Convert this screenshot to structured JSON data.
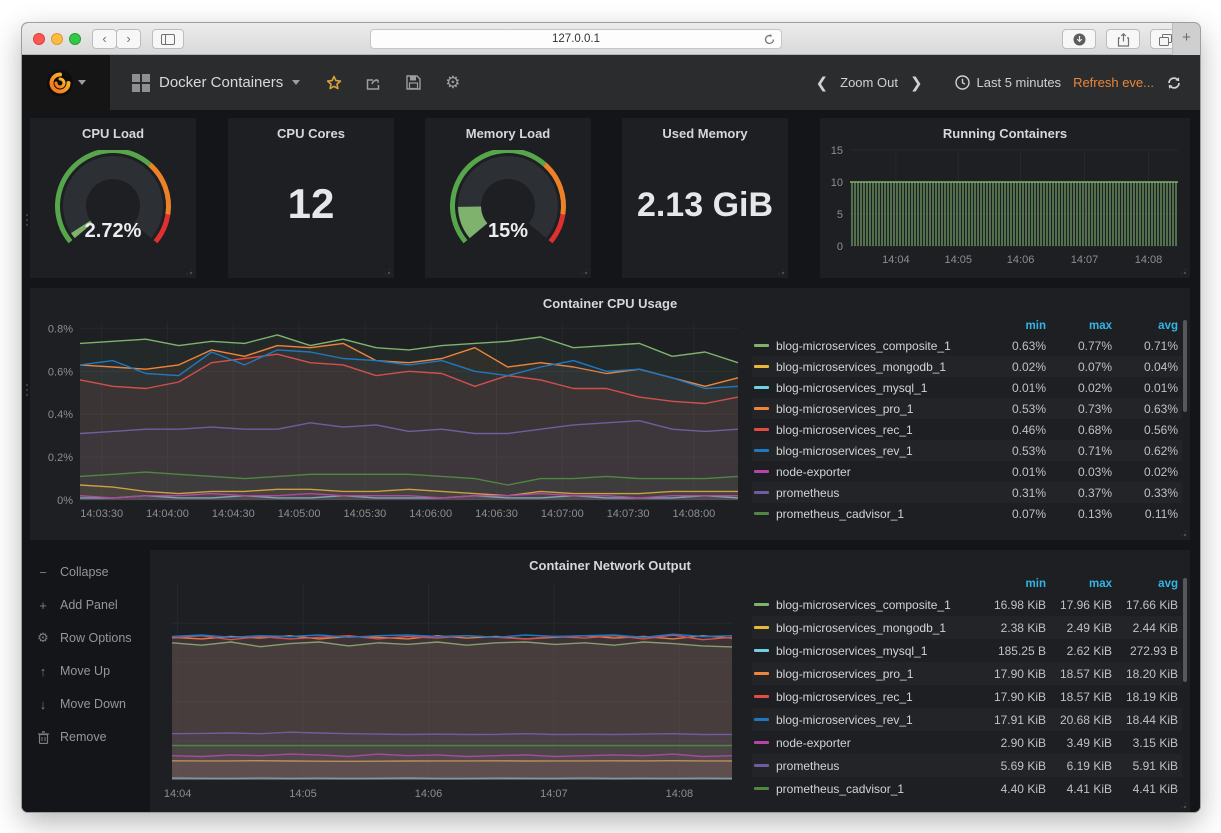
{
  "browser": {
    "url": "127.0.0.1"
  },
  "navbar": {
    "dashboard_title": "Docker Containers",
    "zoom_out": "Zoom Out",
    "time_range": "Last 5 minutes",
    "refresh_interval": "Refresh eve...",
    "accent_orange": "#e8873a"
  },
  "stats": {
    "cpu_load": {
      "title": "CPU Load",
      "value": "2.72%",
      "percent": 2.72
    },
    "cpu_cores": {
      "title": "CPU Cores",
      "value": "12"
    },
    "memory_load": {
      "title": "Memory Load",
      "value": "15%",
      "percent": 15
    },
    "used_memory": {
      "title": "Used Memory",
      "value": "2.13 GiB"
    }
  },
  "gauge": {
    "thresholds": [
      "#57a64b",
      "#ed8128",
      "#e02f2f"
    ],
    "value_color": "#7eb26d"
  },
  "legend_header": [
    "min",
    "max",
    "avg"
  ],
  "row_menu": {
    "items": [
      {
        "icon": "minus",
        "label": "Collapse"
      },
      {
        "icon": "plus",
        "label": "Add Panel"
      },
      {
        "icon": "gear",
        "label": "Row Options"
      },
      {
        "icon": "arrow-up",
        "label": "Move Up"
      },
      {
        "icon": "arrow-down",
        "label": "Move Down"
      },
      {
        "icon": "trash",
        "label": "Remove"
      }
    ]
  },
  "chart_data": [
    {
      "id": "running-containers",
      "type": "bar",
      "title": "Running Containers",
      "value": 10,
      "color": "#7eb26d",
      "ylim": [
        0,
        15
      ],
      "grid": true,
      "legend_position": "none",
      "yticks": [
        {
          "v": 0,
          "label": "0"
        },
        {
          "v": 5,
          "label": "5"
        },
        {
          "v": 10,
          "label": "10"
        },
        {
          "v": 15,
          "label": "15"
        }
      ],
      "xticks": [
        {
          "f": 0.14,
          "label": "14:04"
        },
        {
          "f": 0.33,
          "label": "14:05"
        },
        {
          "f": 0.52,
          "label": "14:06"
        },
        {
          "f": 0.715,
          "label": "14:07"
        },
        {
          "f": 0.91,
          "label": "14:08"
        }
      ]
    },
    {
      "id": "cpu-usage",
      "type": "line",
      "title": "Container CPU Usage",
      "ylim": [
        0,
        0.83
      ],
      "grid": true,
      "legend_position": "right-table",
      "yticks": [
        {
          "v": 0,
          "label": "0%"
        },
        {
          "v": 0.2,
          "label": "0.2%"
        },
        {
          "v": 0.4,
          "label": "0.4%"
        },
        {
          "v": 0.6,
          "label": "0.6%"
        },
        {
          "v": 0.8,
          "label": "0.8%"
        }
      ],
      "xticks": [
        {
          "f": 0.033,
          "label": "14:03:30"
        },
        {
          "f": 0.133,
          "label": "14:04:00"
        },
        {
          "f": 0.233,
          "label": "14:04:30"
        },
        {
          "f": 0.333,
          "label": "14:05:00"
        },
        {
          "f": 0.433,
          "label": "14:05:30"
        },
        {
          "f": 0.533,
          "label": "14:06:00"
        },
        {
          "f": 0.633,
          "label": "14:06:30"
        },
        {
          "f": 0.733,
          "label": "14:07:00"
        },
        {
          "f": 0.833,
          "label": "14:07:30"
        },
        {
          "f": 0.933,
          "label": "14:08:00"
        }
      ],
      "series": [
        {
          "name": "blog-microservices_composite_1",
          "color": "#7EB26D",
          "min": "0.63%",
          "max": "0.77%",
          "avg": "0.71%",
          "values": [
            0.73,
            0.74,
            0.75,
            0.72,
            0.74,
            0.73,
            0.77,
            0.72,
            0.75,
            0.71,
            0.7,
            0.72,
            0.73,
            0.74,
            0.76,
            0.71,
            0.72,
            0.73,
            0.67,
            0.69,
            0.64
          ]
        },
        {
          "name": "blog-microservices_mongodb_1",
          "color": "#EAB839",
          "min": "0.02%",
          "max": "0.07%",
          "avg": "0.04%",
          "values": [
            0.07,
            0.06,
            0.04,
            0.03,
            0.04,
            0.04,
            0.05,
            0.05,
            0.04,
            0.04,
            0.05,
            0.04,
            0.03,
            0.02,
            0.04,
            0.03,
            0.03,
            0.03,
            0.04,
            0.04,
            0.04
          ]
        },
        {
          "name": "blog-microservices_mysql_1",
          "color": "#6ED0E0",
          "min": "0.01%",
          "max": "0.02%",
          "avg": "0.01%",
          "values": [
            0.01,
            0.01,
            0.02,
            0.01,
            0.01,
            0.02,
            0.01,
            0.01,
            0.02,
            0.01,
            0.01,
            0.01,
            0.02,
            0.01,
            0.01,
            0.02,
            0.01,
            0.01,
            0.01,
            0.02,
            0.01
          ]
        },
        {
          "name": "blog-microservices_pro_1",
          "color": "#EF843C",
          "min": "0.53%",
          "max": "0.73%",
          "avg": "0.63%",
          "values": [
            0.63,
            0.62,
            0.61,
            0.63,
            0.7,
            0.67,
            0.72,
            0.71,
            0.73,
            0.65,
            0.64,
            0.66,
            0.71,
            0.62,
            0.64,
            0.62,
            0.59,
            0.61,
            0.57,
            0.53,
            0.57
          ]
        },
        {
          "name": "blog-microservices_rec_1",
          "color": "#E24D42",
          "min": "0.46%",
          "max": "0.68%",
          "avg": "0.56%",
          "values": [
            0.56,
            0.53,
            0.52,
            0.55,
            0.64,
            0.66,
            0.68,
            0.64,
            0.63,
            0.58,
            0.6,
            0.59,
            0.53,
            0.58,
            0.56,
            0.52,
            0.52,
            0.48,
            0.46,
            0.45,
            0.48
          ]
        },
        {
          "name": "blog-microservices_rev_1",
          "color": "#1F78C1",
          "min": "0.53%",
          "max": "0.71%",
          "avg": "0.62%",
          "values": [
            0.63,
            0.65,
            0.59,
            0.58,
            0.69,
            0.63,
            0.7,
            0.69,
            0.66,
            0.65,
            0.63,
            0.65,
            0.6,
            0.58,
            0.62,
            0.65,
            0.6,
            0.61,
            0.57,
            0.52,
            0.53
          ]
        },
        {
          "name": "node-exporter",
          "color": "#BA43A9",
          "min": "0.01%",
          "max": "0.03%",
          "avg": "0.02%",
          "values": [
            0.02,
            0.01,
            0.02,
            0.02,
            0.03,
            0.02,
            0.02,
            0.03,
            0.02,
            0.02,
            0.02,
            0.01,
            0.02,
            0.02,
            0.03,
            0.02,
            0.02,
            0.01,
            0.02,
            0.02,
            0.02
          ]
        },
        {
          "name": "prometheus",
          "color": "#705DA0",
          "min": "0.31%",
          "max": "0.37%",
          "avg": "0.33%",
          "values": [
            0.31,
            0.32,
            0.33,
            0.33,
            0.34,
            0.33,
            0.33,
            0.36,
            0.34,
            0.35,
            0.32,
            0.33,
            0.31,
            0.31,
            0.33,
            0.35,
            0.36,
            0.37,
            0.33,
            0.32,
            0.33
          ]
        },
        {
          "name": "prometheus_cadvisor_1",
          "color": "#508642",
          "min": "0.07%",
          "max": "0.13%",
          "avg": "0.11%",
          "values": [
            0.11,
            0.12,
            0.13,
            0.12,
            0.11,
            0.1,
            0.11,
            0.12,
            0.12,
            0.12,
            0.12,
            0.11,
            0.1,
            0.07,
            0.1,
            0.1,
            0.11,
            0.1,
            0.1,
            0.1,
            0.11
          ]
        }
      ]
    },
    {
      "id": "network-output",
      "type": "line",
      "title": "Container Network Output",
      "ylim": [
        0,
        25
      ],
      "unit": "KiB",
      "grid": true,
      "legend_position": "right-table",
      "yticks": [
        {
          "v": 5
        },
        {
          "v": 10
        },
        {
          "v": 15
        },
        {
          "v": 20
        }
      ],
      "xticks": [
        {
          "f": 0.01,
          "label": "14:04"
        },
        {
          "f": 0.234,
          "label": "14:05"
        },
        {
          "f": 0.458,
          "label": "14:06"
        },
        {
          "f": 0.682,
          "label": "14:07"
        },
        {
          "f": 0.906,
          "label": "14:08"
        }
      ],
      "series": [
        {
          "name": "blog-microservices_composite_1",
          "color": "#7EB26D",
          "min": "16.98 KiB",
          "max": "17.96 KiB",
          "avg": "17.66 KiB",
          "values": [
            17.5,
            17.2,
            17.6,
            17.0,
            17.4,
            17.6,
            17.1,
            17.5,
            17.3,
            17.6,
            17.2,
            17.5,
            17.6,
            17.3,
            17.5,
            17.2,
            17.6,
            17.4,
            17.1,
            16.98
          ]
        },
        {
          "name": "blog-microservices_mongodb_1",
          "color": "#EAB839",
          "min": "2.38 KiB",
          "max": "2.49 KiB",
          "avg": "2.44 KiB",
          "values": [
            2.45,
            2.44,
            2.43,
            2.46,
            2.42,
            2.4,
            2.38,
            2.4,
            2.42,
            2.44,
            2.43,
            2.45,
            2.42,
            2.44,
            2.43,
            2.45,
            2.44,
            2.46,
            2.43,
            2.44
          ]
        },
        {
          "name": "blog-microservices_mysql_1",
          "color": "#6ED0E0",
          "min": "185.25 B",
          "max": "2.62 KiB",
          "avg": "272.93 B",
          "values": [
            0.25,
            0.22,
            0.2,
            0.24,
            0.21,
            0.23,
            0.2,
            0.22,
            0.25,
            0.21,
            0.2,
            0.23,
            0.22,
            0.2,
            0.24,
            0.21,
            0.22,
            0.2,
            0.23,
            0.21
          ]
        },
        {
          "name": "blog-microservices_pro_1",
          "color": "#EF843C",
          "min": "17.90 KiB",
          "max": "18.57 KiB",
          "avg": "18.20 KiB",
          "values": [
            18.2,
            18.0,
            18.3,
            18.1,
            18.4,
            18.0,
            18.3,
            18.2,
            18.0,
            18.4,
            18.1,
            18.3,
            18.0,
            18.2,
            18.4,
            18.1,
            18.3,
            18.0,
            18.4,
            18.1
          ]
        },
        {
          "name": "blog-microservices_rec_1",
          "color": "#E24D42",
          "min": "17.90 KiB",
          "max": "18.57 KiB",
          "avg": "18.19 KiB",
          "values": [
            18.1,
            18.4,
            17.9,
            18.3,
            18.0,
            18.2,
            18.4,
            18.0,
            18.3,
            18.1,
            18.4,
            18.2,
            18.0,
            18.3,
            18.1,
            18.4,
            18.0,
            18.5,
            17.9,
            18.2
          ]
        },
        {
          "name": "blog-microservices_rev_1",
          "color": "#1F78C1",
          "min": "17.91 KiB",
          "max": "20.68 KiB",
          "avg": "18.44 KiB",
          "values": [
            18.3,
            18.5,
            18.2,
            18.4,
            18.3,
            18.5,
            18.2,
            18.4,
            18.5,
            18.3,
            18.4,
            18.2,
            18.5,
            18.3,
            18.4,
            18.5,
            18.2,
            18.6,
            18.3,
            18.4
          ]
        },
        {
          "name": "node-exporter",
          "color": "#BA43A9",
          "min": "2.90 KiB",
          "max": "3.49 KiB",
          "avg": "3.15 KiB",
          "values": [
            3.1,
            3.0,
            3.2,
            3.1,
            3.3,
            3.2,
            3.0,
            3.3,
            3.1,
            3.2,
            3.0,
            3.1,
            3.2,
            3.0,
            3.1,
            3.2,
            3.1,
            3.3,
            3.0,
            3.1
          ]
        },
        {
          "name": "prometheus",
          "color": "#705DA0",
          "min": "5.69 KiB",
          "max": "6.19 KiB",
          "avg": "5.91 KiB",
          "values": [
            5.9,
            5.95,
            6.0,
            5.9,
            6.1,
            6.0,
            5.9,
            5.85,
            5.8,
            5.85,
            5.8,
            5.82,
            5.9,
            5.8,
            5.83,
            5.8,
            5.85,
            5.9,
            5.8,
            5.82
          ]
        },
        {
          "name": "prometheus_cadvisor_1",
          "color": "#508642",
          "min": "4.40 KiB",
          "max": "4.41 KiB",
          "avg": "4.41 KiB",
          "values": [
            4.4,
            4.4,
            4.4,
            4.4,
            4.4,
            4.4,
            4.4,
            4.4,
            4.4,
            4.4,
            4.4,
            4.4,
            4.4,
            4.4,
            4.4,
            4.4,
            4.4,
            4.4,
            4.4,
            4.4
          ]
        }
      ]
    }
  ]
}
